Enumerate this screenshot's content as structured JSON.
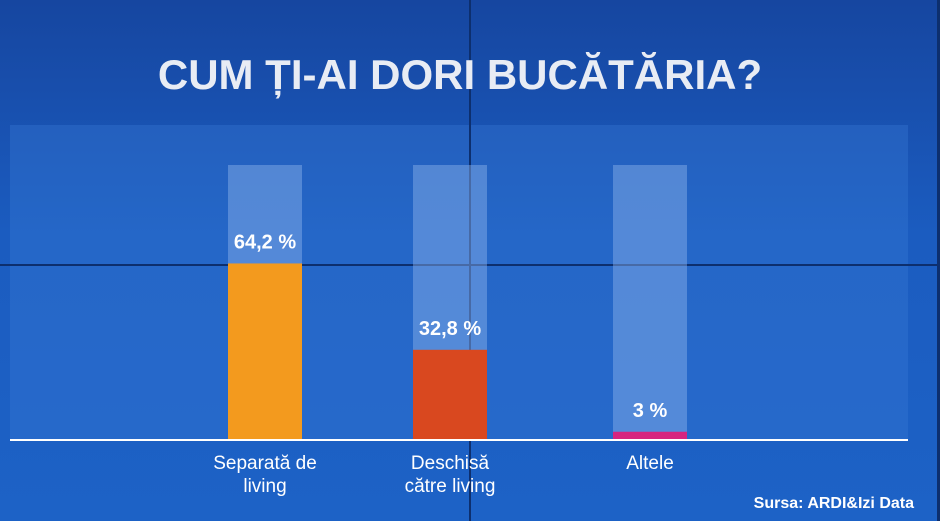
{
  "chart_data": {
    "type": "bar",
    "title": "CUM ȚI-AI DORI BUCĂTĂRIA?",
    "categories": [
      "Separată de living",
      "Deschisă către living",
      "Altele"
    ],
    "values": [
      64.2,
      32.8,
      3
    ],
    "value_labels": [
      "64,2 %",
      "32,8 %",
      "3 %"
    ],
    "colors": [
      "#f39a1e",
      "#d9481f",
      "#d6247f"
    ],
    "ylim": [
      0,
      100
    ],
    "source": "Sursa: ARDI&Izi Data"
  }
}
